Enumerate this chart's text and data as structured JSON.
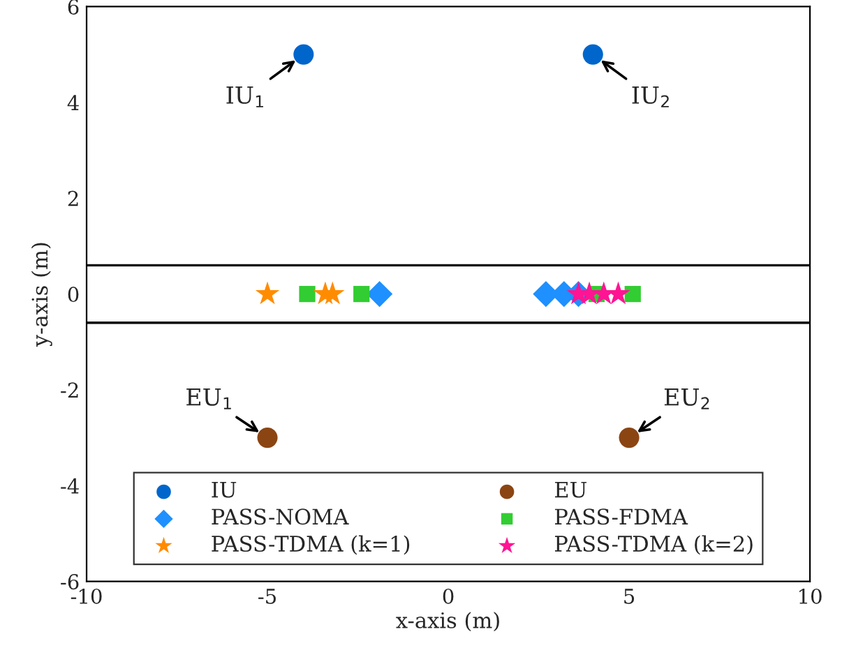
{
  "chart_data": {
    "type": "scatter",
    "xlabel": "x-axis (m)",
    "ylabel": "y-axis (m)",
    "xlim": [
      -10,
      10
    ],
    "xticks": [
      -10,
      -5,
      0,
      5,
      10
    ],
    "ylim": [
      -6,
      6
    ],
    "yticks": [
      -6,
      -4,
      -2,
      0,
      2,
      4,
      6
    ],
    "grid": false,
    "legend": "bottom",
    "series": [
      {
        "name": "IU",
        "color": "#0066cc",
        "marker": "circle",
        "x": [
          -4,
          4
        ],
        "values": [
          5,
          5
        ]
      },
      {
        "name": "EU",
        "color": "#8b4513",
        "marker": "circle",
        "x": [
          -5,
          5
        ],
        "values": [
          -3,
          -3
        ]
      },
      {
        "name": "PASS-NOMA",
        "color": "#1e90ff",
        "marker": "diamond",
        "x": [
          -1.9,
          2.7,
          3.2,
          3.6
        ],
        "values": [
          0,
          0,
          0,
          0
        ]
      },
      {
        "name": "PASS-FDMA",
        "color": "#32cd32",
        "marker": "square",
        "x": [
          -3.9,
          -2.4,
          4.1,
          5.1
        ],
        "values": [
          0,
          0,
          0,
          0
        ]
      },
      {
        "name": "PASS-TDMA (k=1)",
        "color": "#ff8c00",
        "marker": "star",
        "x": [
          -5,
          -3.4,
          -3.2
        ],
        "values": [
          0,
          0,
          0
        ]
      },
      {
        "name": "PASS-TDMA (k=2)",
        "color": "#ff1493",
        "marker": "star",
        "x": [
          3.6,
          3.9,
          4.3,
          4.7
        ],
        "values": [
          0,
          0,
          0,
          0
        ]
      }
    ],
    "ref_lines": [
      {
        "axis": "y",
        "value": 0.6,
        "color": "#000000"
      },
      {
        "axis": "y",
        "value": -0.6,
        "color": "#000000"
      }
    ],
    "annotations": [
      {
        "text": "IU$_{1}$",
        "x": -4,
        "y": 5
      },
      {
        "text": "IU$_{2}$",
        "x": 4,
        "y": 5
      },
      {
        "text": "EU$_{1}$",
        "x": -5,
        "y": -3
      },
      {
        "text": "EU$_{2}$",
        "x": 5,
        "y": -3
      }
    ]
  }
}
